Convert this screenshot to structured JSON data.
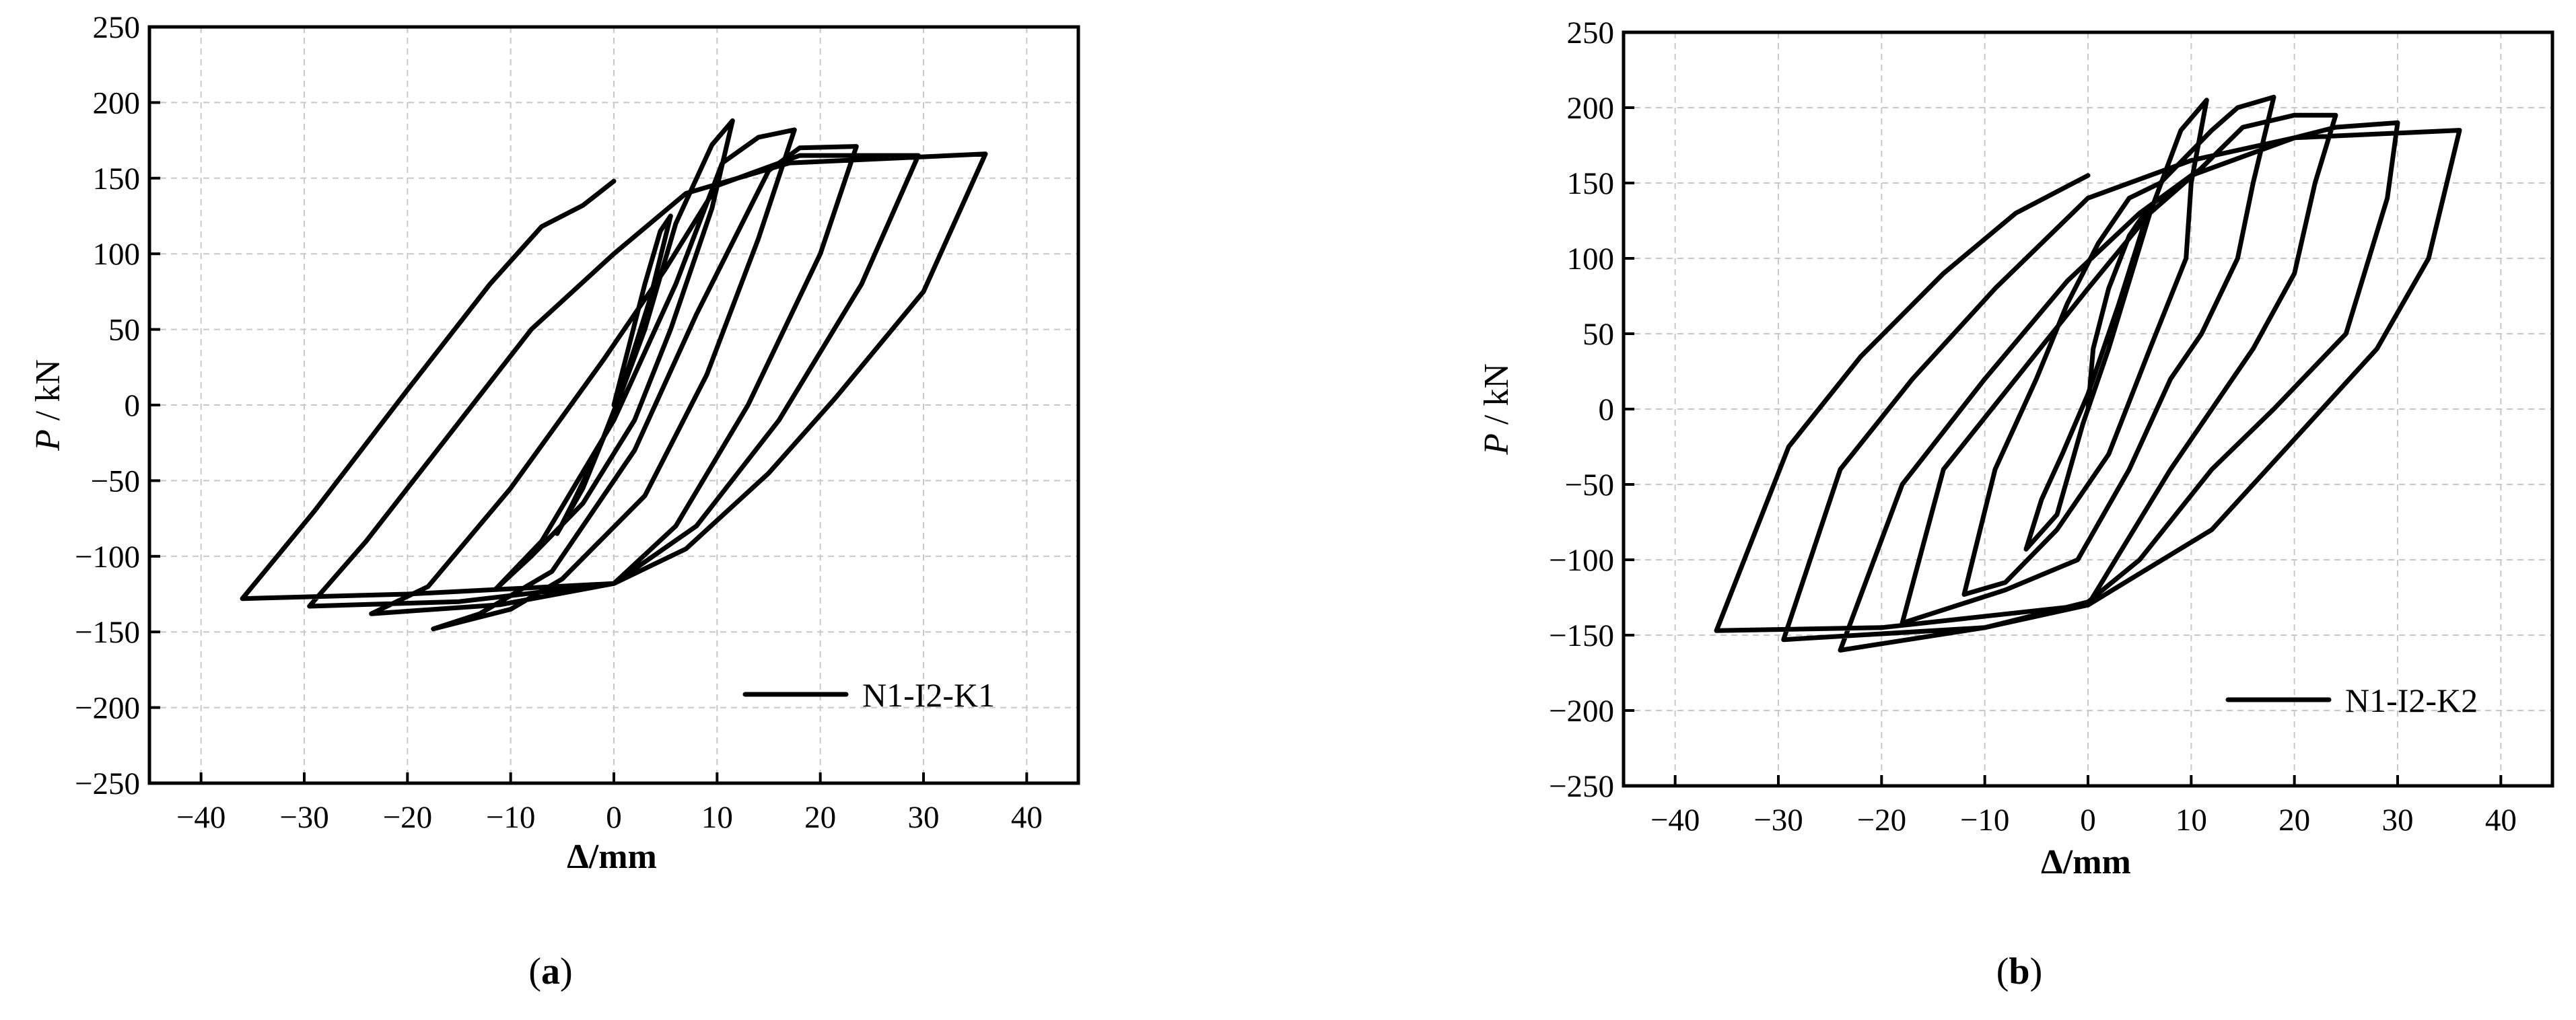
{
  "chart_data": [
    {
      "type": "line",
      "panel_label": "(a)",
      "panel_label_letter": "a",
      "xlabel": "Δ/mm",
      "ylabel_italic": "P",
      "ylabel_unit": " / kN",
      "xlim": [
        -45,
        45
      ],
      "ylim": [
        -250,
        250
      ],
      "xticks": [
        -40,
        -30,
        -20,
        -10,
        0,
        10,
        20,
        30,
        40
      ],
      "yticks": [
        -250,
        -200,
        -150,
        -100,
        -50,
        0,
        50,
        100,
        150,
        200,
        250
      ],
      "xtick_labels": [
        "−40",
        "−30",
        "−20",
        "−10",
        "0",
        "10",
        "20",
        "30",
        "40"
      ],
      "ytick_labels": [
        "−250",
        "−200",
        "−150",
        "−100",
        "−50",
        "0",
        "50",
        "100",
        "150",
        "200",
        "250"
      ],
      "grid": true,
      "legend_position": "bottom-right",
      "series": [
        {
          "name": "N1-I2-K1",
          "points": [
            [
              0,
              0
            ],
            [
              1.5,
              40
            ],
            [
              3,
              80
            ],
            [
              4.5,
              115
            ],
            [
              5.5,
              125
            ],
            [
              3.5,
              70
            ],
            [
              0.5,
              5
            ],
            [
              -1.5,
              -30
            ],
            [
              -4,
              -65
            ],
            [
              -5.5,
              -85
            ],
            [
              -3,
              -55
            ],
            [
              0,
              -5
            ],
            [
              3,
              50
            ],
            [
              6,
              120
            ],
            [
              9.5,
              172
            ],
            [
              11.5,
              188
            ],
            [
              9.5,
              130
            ],
            [
              5.5,
              50
            ],
            [
              2,
              -10
            ],
            [
              -3,
              -65
            ],
            [
              -8,
              -100
            ],
            [
              -11.5,
              -122
            ],
            [
              -7,
              -90
            ],
            [
              0,
              -10
            ],
            [
              6,
              80
            ],
            [
              10.5,
              160
            ],
            [
              14,
              177
            ],
            [
              17.5,
              182
            ],
            [
              14,
              110
            ],
            [
              9,
              20
            ],
            [
              3,
              -60
            ],
            [
              -5,
              -115
            ],
            [
              -10,
              -135
            ],
            [
              -17.5,
              -148
            ],
            [
              -13,
              -138
            ],
            [
              -6,
              -110
            ],
            [
              2,
              -30
            ],
            [
              8,
              60
            ],
            [
              15,
              155
            ],
            [
              18,
              170
            ],
            [
              23.5,
              171
            ],
            [
              20,
              100
            ],
            [
              13,
              0
            ],
            [
              6,
              -80
            ],
            [
              0,
              -118
            ],
            [
              -11,
              -132
            ],
            [
              -23.5,
              -138
            ],
            [
              -18,
              -120
            ],
            [
              -10,
              -55
            ],
            [
              -1,
              30
            ],
            [
              5,
              90
            ],
            [
              10,
              145
            ],
            [
              18,
              165
            ],
            [
              29.5,
              165
            ],
            [
              24,
              80
            ],
            [
              16,
              -10
            ],
            [
              8,
              -80
            ],
            [
              0,
              -118
            ],
            [
              -15,
              -130
            ],
            [
              -29.5,
              -133
            ],
            [
              -24,
              -90
            ],
            [
              -16,
              -20
            ],
            [
              -8,
              50
            ],
            [
              0,
              100
            ],
            [
              7,
              140
            ],
            [
              17,
              160
            ],
            [
              36,
              166
            ],
            [
              30,
              75
            ],
            [
              21.5,
              5
            ],
            [
              15,
              -45
            ],
            [
              7,
              -95
            ],
            [
              0,
              -118
            ],
            [
              -20,
              -125
            ],
            [
              -36,
              -128
            ],
            [
              -29,
              -70
            ],
            [
              -20,
              10
            ],
            [
              -12,
              80
            ],
            [
              -7,
              118
            ],
            [
              -3,
              132
            ],
            [
              0,
              148
            ]
          ]
        }
      ]
    },
    {
      "type": "line",
      "panel_label": "(b)",
      "panel_label_letter": "b",
      "xlabel": "Δ/mm",
      "ylabel_italic": "P",
      "ylabel_unit": " / kN",
      "xlim": [
        -45,
        45
      ],
      "ylim": [
        -250,
        250
      ],
      "xticks": [
        -40,
        -30,
        -20,
        -10,
        0,
        10,
        20,
        30,
        40
      ],
      "yticks": [
        -250,
        -200,
        -150,
        -100,
        -50,
        0,
        50,
        100,
        150,
        200,
        250
      ],
      "xtick_labels": [
        "−40",
        "−30",
        "−20",
        "−10",
        "0",
        "10",
        "20",
        "30",
        "40"
      ],
      "ytick_labels": [
        "−250",
        "−200",
        "−150",
        "−100",
        "−50",
        "0",
        "50",
        "100",
        "150",
        "200",
        "250"
      ],
      "grid": true,
      "legend_position": "bottom-right",
      "series": [
        {
          "name": "N1-I2-K2",
          "points": [
            [
              0,
              0
            ],
            [
              0.5,
              40
            ],
            [
              2,
              80
            ],
            [
              4,
              115
            ],
            [
              6,
              135
            ],
            [
              3,
              70
            ],
            [
              0,
              10
            ],
            [
              -2.5,
              -30
            ],
            [
              -4.5,
              -60
            ],
            [
              -6,
              -93
            ],
            [
              -3,
              -70
            ],
            [
              -0.5,
              -10
            ],
            [
              2,
              40
            ],
            [
              6,
              130
            ],
            [
              9,
              185
            ],
            [
              11.5,
              205
            ],
            [
              10,
              150
            ],
            [
              9.5,
              100
            ],
            [
              6,
              40
            ],
            [
              2,
              -30
            ],
            [
              -3,
              -80
            ],
            [
              -8,
              -115
            ],
            [
              -12,
              -123
            ],
            [
              -9,
              -40
            ],
            [
              -5,
              20
            ],
            [
              -2,
              70
            ],
            [
              1,
              110
            ],
            [
              4,
              140
            ],
            [
              7,
              150
            ],
            [
              12,
              185
            ],
            [
              14.5,
              200
            ],
            [
              18,
              207
            ],
            [
              16,
              150
            ],
            [
              14.5,
              100
            ],
            [
              11,
              50
            ],
            [
              8,
              20
            ],
            [
              4,
              -40
            ],
            [
              -1,
              -100
            ],
            [
              -8,
              -120
            ],
            [
              -18,
              -142
            ],
            [
              -14,
              -40
            ],
            [
              -7,
              20
            ],
            [
              0,
              80
            ],
            [
              6,
              130
            ],
            [
              11,
              160
            ],
            [
              15,
              187
            ],
            [
              20,
              195
            ],
            [
              24,
              195
            ],
            [
              22,
              150
            ],
            [
              20,
              90
            ],
            [
              16,
              40
            ],
            [
              8,
              -40
            ],
            [
              0,
              -130
            ],
            [
              -10,
              -145
            ],
            [
              -24,
              -160
            ],
            [
              -18,
              -50
            ],
            [
              -10,
              20
            ],
            [
              -2,
              85
            ],
            [
              5,
              130
            ],
            [
              10,
              155
            ],
            [
              20,
              180
            ],
            [
              24,
              187
            ],
            [
              30,
              190
            ],
            [
              29,
              140
            ],
            [
              25,
              50
            ],
            [
              18,
              0
            ],
            [
              12,
              -40
            ],
            [
              5,
              -100
            ],
            [
              0,
              -128
            ],
            [
              -10,
              -145
            ],
            [
              -29.5,
              -153
            ],
            [
              -24,
              -40
            ],
            [
              -17,
              20
            ],
            [
              -9,
              80
            ],
            [
              0,
              140
            ],
            [
              10,
              165
            ],
            [
              20,
              180
            ],
            [
              36,
              185
            ],
            [
              33,
              100
            ],
            [
              28,
              40
            ],
            [
              20,
              -20
            ],
            [
              12,
              -80
            ],
            [
              0,
              -130
            ],
            [
              -20,
              -145
            ],
            [
              -36,
              -147
            ],
            [
              -29,
              -25
            ],
            [
              -22,
              35
            ],
            [
              -14,
              90
            ],
            [
              -7,
              130
            ],
            [
              0,
              155
            ]
          ]
        }
      ]
    }
  ]
}
